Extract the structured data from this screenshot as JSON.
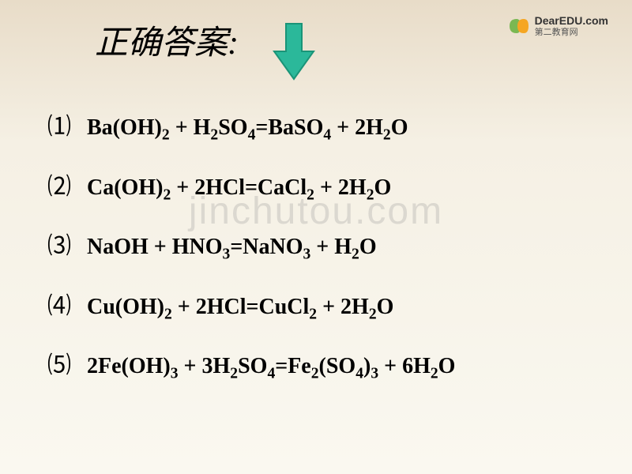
{
  "title": "正确答案:",
  "logo": {
    "main": "DearEDU.com",
    "sub": "第二教育网",
    "icon_colors": {
      "left": "#7ab852",
      "right": "#f5a623"
    }
  },
  "arrow": {
    "fill": "#2bb89a",
    "stroke": "#1a9478",
    "width": 60,
    "height": 80
  },
  "watermark": "jinchutou.com",
  "equations": [
    {
      "num": "⑴",
      "html": "Ba(OH)<sub>2</sub> + H<sub>2</sub>SO<sub>4</sub>=BaSO<sub>4</sub> + 2H<sub>2</sub>O"
    },
    {
      "num": "⑵",
      "html": "Ca(OH)<sub>2</sub> + 2HCl=CaCl<sub>2</sub> + 2H<sub>2</sub>O"
    },
    {
      "num": "⑶",
      "html": "NaOH + HNO<sub>3</sub>=NaNO<sub>3</sub> + H<sub>2</sub>O"
    },
    {
      "num": "⑷",
      "html": "Cu(OH)<sub>2</sub> + 2HCl=CuCl<sub>2</sub> + 2H<sub>2</sub>O"
    },
    {
      "num": "⑸",
      "html": "2Fe(OH)<sub>3</sub> + 3H<sub>2</sub>SO<sub>4</sub>=Fe<sub>2</sub>(SO<sub>4</sub>)<sub>3</sub> + 6H<sub>2</sub>O"
    }
  ],
  "colors": {
    "background_top": "#e8dcc8",
    "background_bottom": "#faf8f0",
    "text": "#000000"
  }
}
